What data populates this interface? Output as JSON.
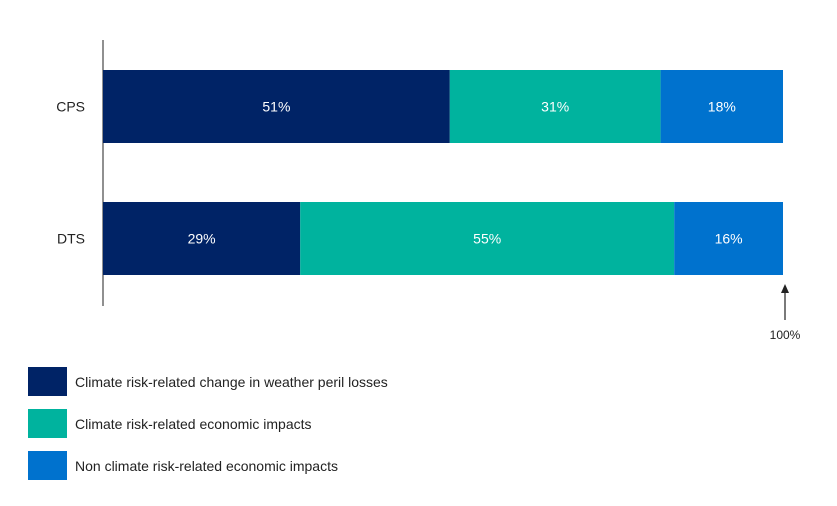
{
  "chart_data": {
    "type": "bar",
    "orientation": "horizontal",
    "stacked": true,
    "categories": [
      "CPS",
      "DTS"
    ],
    "series": [
      {
        "name": "Climate risk-related change in weather peril losses",
        "values": [
          51,
          29
        ],
        "color": "#002366"
      },
      {
        "name": "Climate risk-related economic impacts",
        "values": [
          31,
          55
        ],
        "color": "#00B39E"
      },
      {
        "name": "Non climate risk-related economic impacts",
        "values": [
          18,
          16
        ],
        "color": "#0072CE"
      }
    ],
    "value_suffix": "%",
    "xlim": [
      0,
      100
    ],
    "total_annotation": "100%",
    "legend_position": "bottom-left",
    "grid": false
  }
}
